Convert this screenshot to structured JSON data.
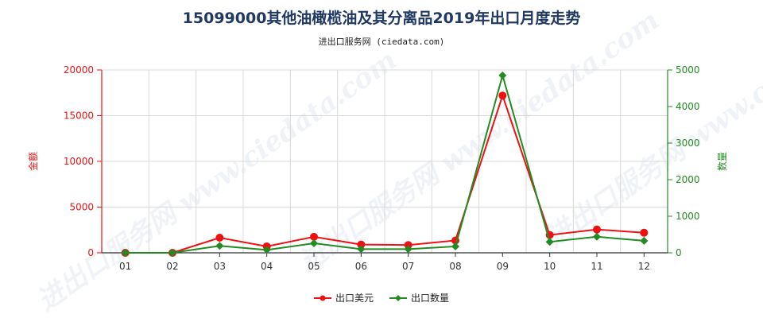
{
  "chart_data": {
    "type": "line",
    "title": "15099000其他油橄榄油及其分离品2019年出口月度走势",
    "subtitle": "进出口服务网 (ciedata.com)",
    "watermark": "进出口服务网 www.ciedata.com",
    "categories": [
      "01",
      "02",
      "03",
      "04",
      "05",
      "06",
      "07",
      "08",
      "09",
      "10",
      "11",
      "12"
    ],
    "y_left": {
      "label": "金额",
      "ylim": [
        0,
        20000
      ],
      "ticks": [
        0,
        5000,
        10000,
        15000,
        20000
      ],
      "color": "#ee1111"
    },
    "y_right": {
      "label": "数量",
      "ylim": [
        0,
        5000
      ],
      "ticks": [
        0,
        1000,
        2000,
        3000,
        4000,
        5000
      ],
      "color": "#228b22"
    },
    "grid": true,
    "legend_position": "bottom-center",
    "series": [
      {
        "name": "出口美元",
        "axis": "left",
        "color": "#ee1111",
        "values": [
          0,
          0,
          1650,
          700,
          1750,
          900,
          850,
          1350,
          17200,
          1950,
          2550,
          2200
        ]
      },
      {
        "name": "出口数量",
        "axis": "right",
        "color": "#228b22",
        "values": [
          0,
          0,
          190,
          80,
          260,
          100,
          100,
          175,
          4850,
          300,
          440,
          330
        ]
      }
    ]
  }
}
